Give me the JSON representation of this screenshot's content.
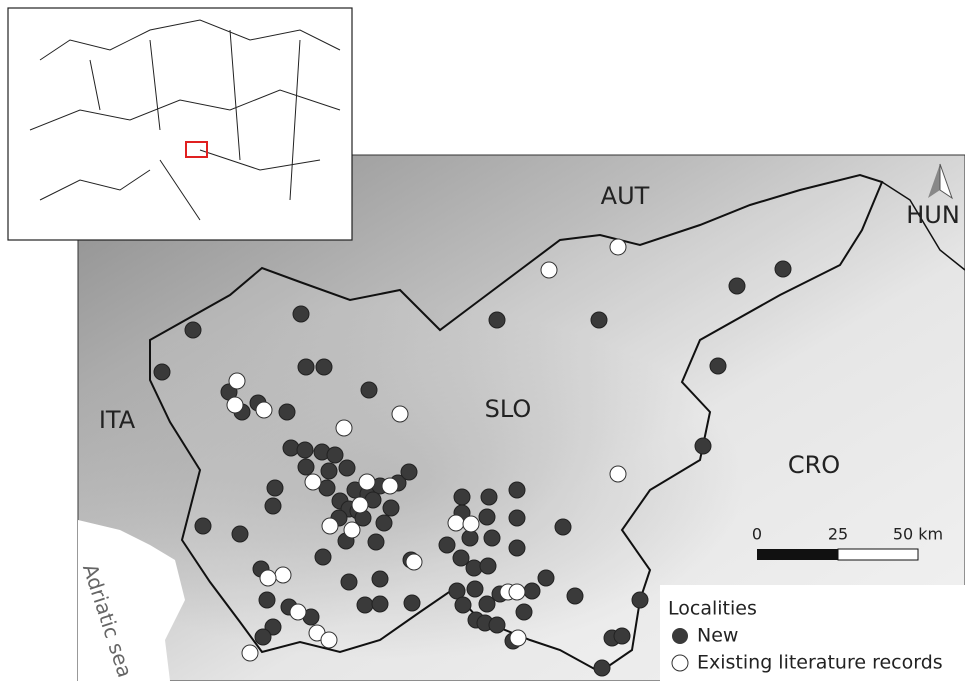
{
  "map": {
    "labels": {
      "aut": "AUT",
      "hun": "HUN",
      "ita": "ITA",
      "slo": "SLO",
      "cro": "CRO",
      "sea": "Adriatic sea"
    },
    "scale_bar": {
      "labels": [
        "0",
        "25",
        "50 km"
      ]
    },
    "legend": {
      "title": "Localities",
      "items": [
        "New",
        "Existing literature records"
      ]
    }
  }
}
